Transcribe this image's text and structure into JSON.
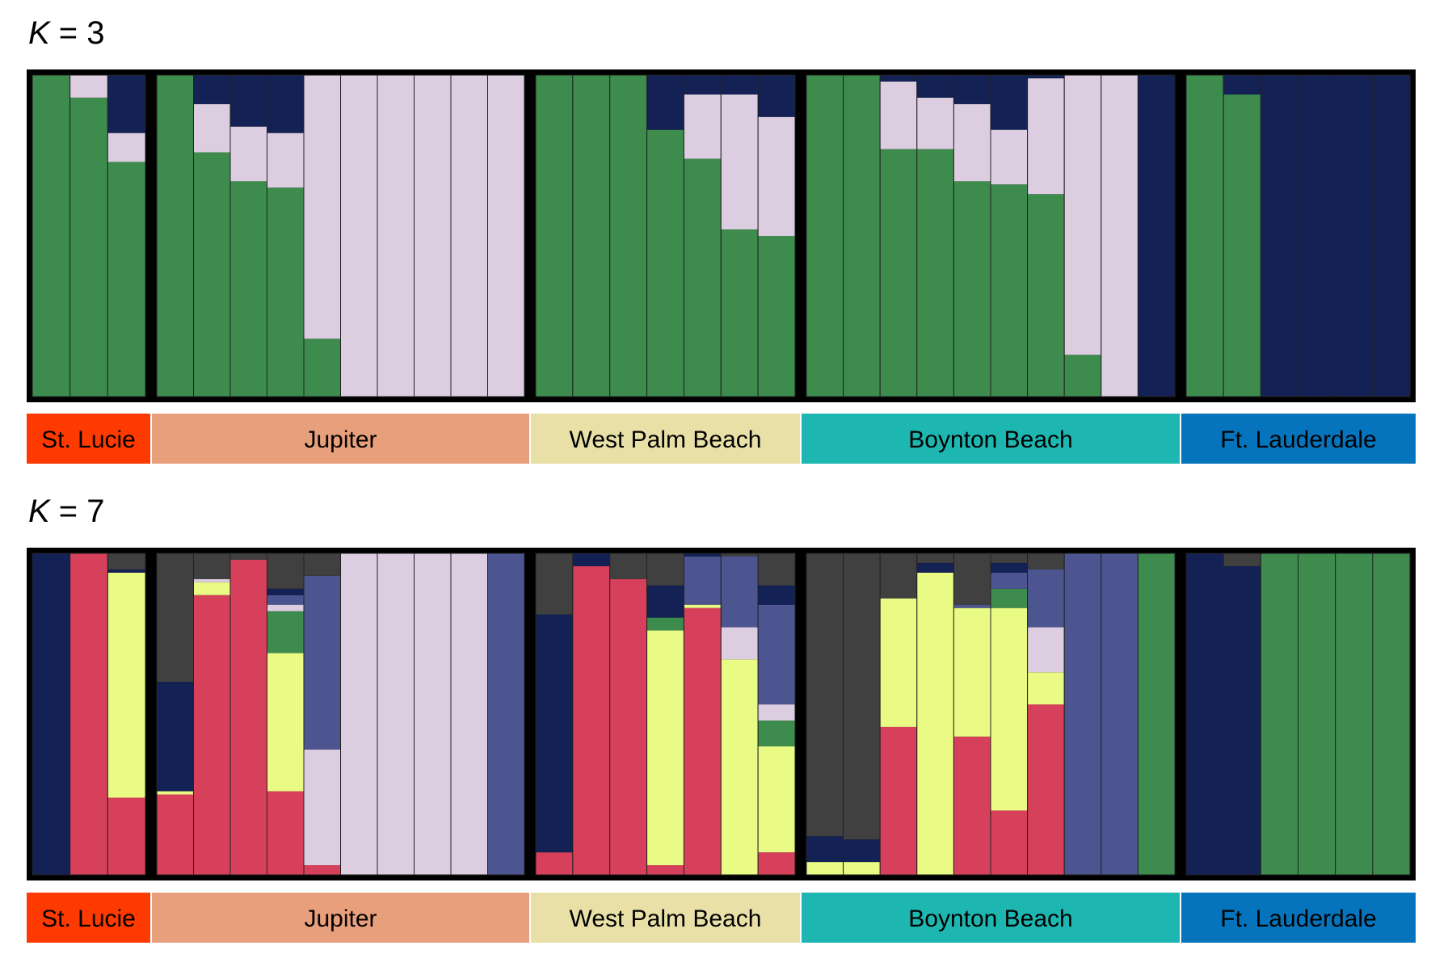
{
  "colors": {
    "dark_gray": "#404040",
    "navy": "#132154",
    "red": "#d7405a",
    "yellow": "#e9fb84",
    "green": "#3d8b4d",
    "slate": "#4d5590",
    "lavender": "#ddcde0",
    "bar_outline": "#222222",
    "frame": "#000000"
  },
  "populations": [
    {
      "name": "St. Lucie",
      "color": "#fe3a00"
    },
    {
      "name": "Jupiter",
      "color": "#e8a07c"
    },
    {
      "name": "West Palm Beach",
      "color": "#e9e0a8"
    },
    {
      "name": "Boynton Beach",
      "color": "#1db6b0"
    },
    {
      "name": "Ft. Lauderdale",
      "color": "#0674bc"
    }
  ],
  "chart_data": [
    {
      "type": "bar",
      "stacked": true,
      "title_italic": "K",
      "title_rest": " = 3",
      "ylim": [
        0,
        1
      ],
      "cluster_order": [
        "green",
        "lavender",
        "navy"
      ],
      "groups": [
        {
          "population": "St. Lucie",
          "individuals": [
            [
              1.0,
              0.0,
              0.0
            ],
            [
              0.93,
              0.07,
              0.0
            ],
            [
              0.73,
              0.09,
              0.18
            ]
          ]
        },
        {
          "population": "Jupiter",
          "individuals": [
            [
              1.0,
              0.0,
              0.0
            ],
            [
              0.76,
              0.15,
              0.09
            ],
            [
              0.67,
              0.17,
              0.16
            ],
            [
              0.65,
              0.17,
              0.18
            ],
            [
              0.18,
              0.82,
              0.0
            ],
            [
              0.0,
              1.0,
              0.0
            ],
            [
              0.0,
              1.0,
              0.0
            ],
            [
              0.0,
              1.0,
              0.0
            ],
            [
              0.0,
              1.0,
              0.0
            ],
            [
              0.0,
              1.0,
              0.0
            ]
          ]
        },
        {
          "population": "West Palm Beach",
          "individuals": [
            [
              1.0,
              0.0,
              0.0
            ],
            [
              1.0,
              0.0,
              0.0
            ],
            [
              1.0,
              0.0,
              0.0
            ],
            [
              0.83,
              0.0,
              0.17
            ],
            [
              0.74,
              0.2,
              0.06
            ],
            [
              0.52,
              0.42,
              0.06
            ],
            [
              0.5,
              0.37,
              0.13
            ]
          ]
        },
        {
          "population": "Boynton Beach",
          "individuals": [
            [
              1.0,
              0.0,
              0.0
            ],
            [
              1.0,
              0.0,
              0.0
            ],
            [
              0.77,
              0.21,
              0.02
            ],
            [
              0.77,
              0.16,
              0.07
            ],
            [
              0.67,
              0.24,
              0.09
            ],
            [
              0.66,
              0.17,
              0.17
            ],
            [
              0.63,
              0.36,
              0.01
            ],
            [
              0.13,
              0.87,
              0.0
            ],
            [
              0.0,
              1.0,
              0.0
            ],
            [
              0.0,
              0.0,
              1.0
            ]
          ]
        },
        {
          "population": "Ft. Lauderdale",
          "individuals": [
            [
              1.0,
              0.0,
              0.0
            ],
            [
              0.94,
              0.0,
              0.06
            ],
            [
              0.0,
              0.0,
              1.0
            ],
            [
              0.0,
              0.0,
              1.0
            ],
            [
              0.0,
              0.0,
              1.0
            ],
            [
              0.0,
              0.0,
              1.0
            ]
          ]
        }
      ]
    },
    {
      "type": "bar",
      "stacked": true,
      "title_italic": "K",
      "title_rest": " = 7",
      "ylim": [
        0,
        1
      ],
      "cluster_order": [
        "red",
        "yellow",
        "green",
        "lavender",
        "slate",
        "navy",
        "dark_gray"
      ],
      "groups": [
        {
          "population": "St. Lucie",
          "individuals": [
            [
              0.0,
              0.0,
              0.0,
              0.0,
              0.0,
              1.0,
              0.0
            ],
            [
              1.0,
              0.0,
              0.0,
              0.0,
              0.0,
              0.0,
              0.0
            ],
            [
              0.24,
              0.7,
              0.0,
              0.0,
              0.0,
              0.01,
              0.05
            ]
          ]
        },
        {
          "population": "Jupiter",
          "individuals": [
            [
              0.25,
              0.01,
              0.0,
              0.0,
              0.0,
              0.34,
              0.4
            ],
            [
              0.87,
              0.04,
              0.0,
              0.01,
              0.0,
              0.0,
              0.08
            ],
            [
              0.98,
              0.0,
              0.0,
              0.0,
              0.0,
              0.0,
              0.02
            ],
            [
              0.26,
              0.43,
              0.13,
              0.02,
              0.03,
              0.02,
              0.11
            ],
            [
              0.03,
              0.0,
              0.0,
              0.36,
              0.54,
              0.0,
              0.07
            ],
            [
              0.0,
              0.0,
              0.0,
              1.0,
              0.0,
              0.0,
              0.0
            ],
            [
              0.0,
              0.0,
              0.0,
              1.0,
              0.0,
              0.0,
              0.0
            ],
            [
              0.0,
              0.0,
              0.0,
              1.0,
              0.0,
              0.0,
              0.0
            ],
            [
              0.0,
              0.0,
              0.0,
              1.0,
              0.0,
              0.0,
              0.0
            ],
            [
              0.0,
              0.0,
              0.0,
              0.0,
              1.0,
              0.0,
              0.0
            ]
          ]
        },
        {
          "population": "West Palm Beach",
          "individuals": [
            [
              0.07,
              0.0,
              0.0,
              0.0,
              0.0,
              0.74,
              0.19
            ],
            [
              0.96,
              0.0,
              0.0,
              0.0,
              0.0,
              0.04,
              0.0
            ],
            [
              0.92,
              0.0,
              0.0,
              0.0,
              0.0,
              0.0,
              0.08
            ],
            [
              0.03,
              0.73,
              0.04,
              0.0,
              0.0,
              0.1,
              0.1
            ],
            [
              0.83,
              0.01,
              0.0,
              0.0,
              0.15,
              0.01,
              0.0
            ],
            [
              0.0,
              0.67,
              0.0,
              0.1,
              0.22,
              0.0,
              0.01
            ],
            [
              0.07,
              0.33,
              0.08,
              0.05,
              0.31,
              0.06,
              0.1
            ]
          ]
        },
        {
          "population": "Boynton Beach",
          "individuals": [
            [
              0.0,
              0.04,
              0.0,
              0.0,
              0.0,
              0.08,
              0.88
            ],
            [
              0.0,
              0.04,
              0.0,
              0.0,
              0.0,
              0.07,
              0.89
            ],
            [
              0.46,
              0.4,
              0.0,
              0.0,
              0.0,
              0.0,
              0.14
            ],
            [
              0.0,
              0.94,
              0.0,
              0.0,
              0.0,
              0.03,
              0.03
            ],
            [
              0.43,
              0.4,
              0.0,
              0.0,
              0.01,
              0.0,
              0.16
            ],
            [
              0.2,
              0.63,
              0.06,
              0.0,
              0.05,
              0.03,
              0.03
            ],
            [
              0.53,
              0.1,
              0.0,
              0.14,
              0.18,
              0.0,
              0.05
            ],
            [
              0.0,
              0.0,
              0.0,
              0.0,
              1.0,
              0.0,
              0.0
            ],
            [
              0.0,
              0.0,
              0.0,
              0.0,
              1.0,
              0.0,
              0.0
            ],
            [
              0.0,
              0.0,
              1.0,
              0.0,
              0.0,
              0.0,
              0.0
            ]
          ]
        },
        {
          "population": "Ft. Lauderdale",
          "individuals": [
            [
              0.0,
              0.0,
              0.0,
              0.0,
              0.0,
              1.0,
              0.0
            ],
            [
              0.0,
              0.0,
              0.0,
              0.0,
              0.0,
              0.96,
              0.04
            ],
            [
              0.0,
              0.0,
              1.0,
              0.0,
              0.0,
              0.0,
              0.0
            ],
            [
              0.0,
              0.0,
              1.0,
              0.0,
              0.0,
              0.0,
              0.0
            ],
            [
              0.0,
              0.0,
              1.0,
              0.0,
              0.0,
              0.0,
              0.0
            ],
            [
              0.0,
              0.0,
              1.0,
              0.0,
              0.0,
              0.0,
              0.0
            ]
          ]
        }
      ]
    }
  ]
}
